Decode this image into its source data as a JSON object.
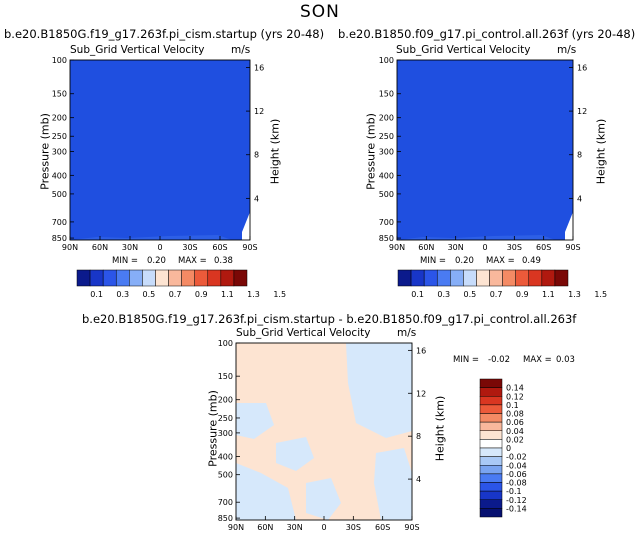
{
  "figure": {
    "title": "SON"
  },
  "chart_data": [
    {
      "type": "heatmap",
      "title": "b.e20.B1850G.f19_g17.263f.pi_cism.startup (yrs 20-48)",
      "variable": "Sub_Grid Vertical Velocity",
      "units": "m/s",
      "xlabel": "",
      "ylabel": "Pressure (mb)",
      "y2label": "Height (km)",
      "x_ticks": [
        "90N",
        "60N",
        "30N",
        "0",
        "30S",
        "60S",
        "90S"
      ],
      "y_ticks": [
        "100",
        "150",
        "200",
        "250",
        "300",
        "400",
        "500",
        "700",
        "850"
      ],
      "y2_ticks": [
        "16",
        "12",
        "8",
        "4"
      ],
      "min_label": "MIN =",
      "min_value": "0.20",
      "max_label": "MAX =",
      "max_value": "0.38",
      "colorbar_labels": [
        "0.1",
        "0.3",
        "0.5",
        "0.7",
        "0.9",
        "1.1",
        "1.3",
        "1.5"
      ],
      "dominant_value": 0.2,
      "dominant_color": "#1f4fe0"
    },
    {
      "type": "heatmap",
      "title": "b.e20.B1850.f09_g17.pi_control.all.263f (yrs 20-48)",
      "variable": "Sub_Grid Vertical Velocity",
      "units": "m/s",
      "xlabel": "",
      "ylabel": "Pressure (mb)",
      "y2label": "Height (km)",
      "x_ticks": [
        "90N",
        "60N",
        "30N",
        "0",
        "30S",
        "60S",
        "90S"
      ],
      "y_ticks": [
        "100",
        "150",
        "200",
        "250",
        "300",
        "400",
        "500",
        "700",
        "850"
      ],
      "y2_ticks": [
        "16",
        "12",
        "8",
        "4"
      ],
      "min_label": "MIN =",
      "min_value": "0.20",
      "max_label": "MAX =",
      "max_value": "0.49",
      "colorbar_labels": [
        "0.1",
        "0.3",
        "0.5",
        "0.7",
        "0.9",
        "1.1",
        "1.3",
        "1.5"
      ],
      "dominant_value": 0.2,
      "dominant_color": "#1f4fe0"
    },
    {
      "type": "heatmap",
      "title": "b.e20.B1850G.f19_g17.263f.pi_cism.startup - b.e20.B1850.f09_g17.pi_control.all.263f",
      "variable": "Sub_Grid Vertical Velocity",
      "units": "m/s",
      "xlabel": "",
      "ylabel": "Pressure (mb)",
      "y2label": "Height (km)",
      "x_ticks": [
        "90N",
        "60N",
        "30N",
        "0",
        "30S",
        "60S",
        "90S"
      ],
      "y_ticks": [
        "100",
        "150",
        "200",
        "250",
        "300",
        "400",
        "500",
        "700",
        "850"
      ],
      "y2_ticks": [
        "16",
        "12",
        "8",
        "4"
      ],
      "min_label": "MIN =",
      "min_value": "-0.02",
      "max_label": "MAX =",
      "max_value": "0.03",
      "colorbar_labels": [
        "0.14",
        "0.12",
        "0.1",
        "0.08",
        "0.06",
        "0.04",
        "0.02",
        "0",
        "-0.02",
        "-0.04",
        "-0.06",
        "-0.08",
        "-0.1",
        "-0.12",
        "-0.14"
      ],
      "positive_fill": "#fde4d2",
      "negative_fill": "#d6e8fb"
    }
  ],
  "colorbars": {
    "abs_colors": [
      "#0b1a8c",
      "#1836c8",
      "#2b55e8",
      "#4a7bf2",
      "#86aef7",
      "#c7dcfb",
      "#fde4d2",
      "#f9b89c",
      "#f48a64",
      "#ec5a3a",
      "#d93621",
      "#b0190f",
      "#7a0806"
    ],
    "diff_colors": [
      "#7a0806",
      "#b0190f",
      "#d93621",
      "#ec5a3a",
      "#f48a64",
      "#f9b89c",
      "#fde4d2",
      "#ffffff",
      "#d6e8fb",
      "#a9c9f6",
      "#7aa4f0",
      "#4a7bf2",
      "#2b55e8",
      "#1836c8",
      "#0b1a8c",
      "#061070"
    ]
  }
}
